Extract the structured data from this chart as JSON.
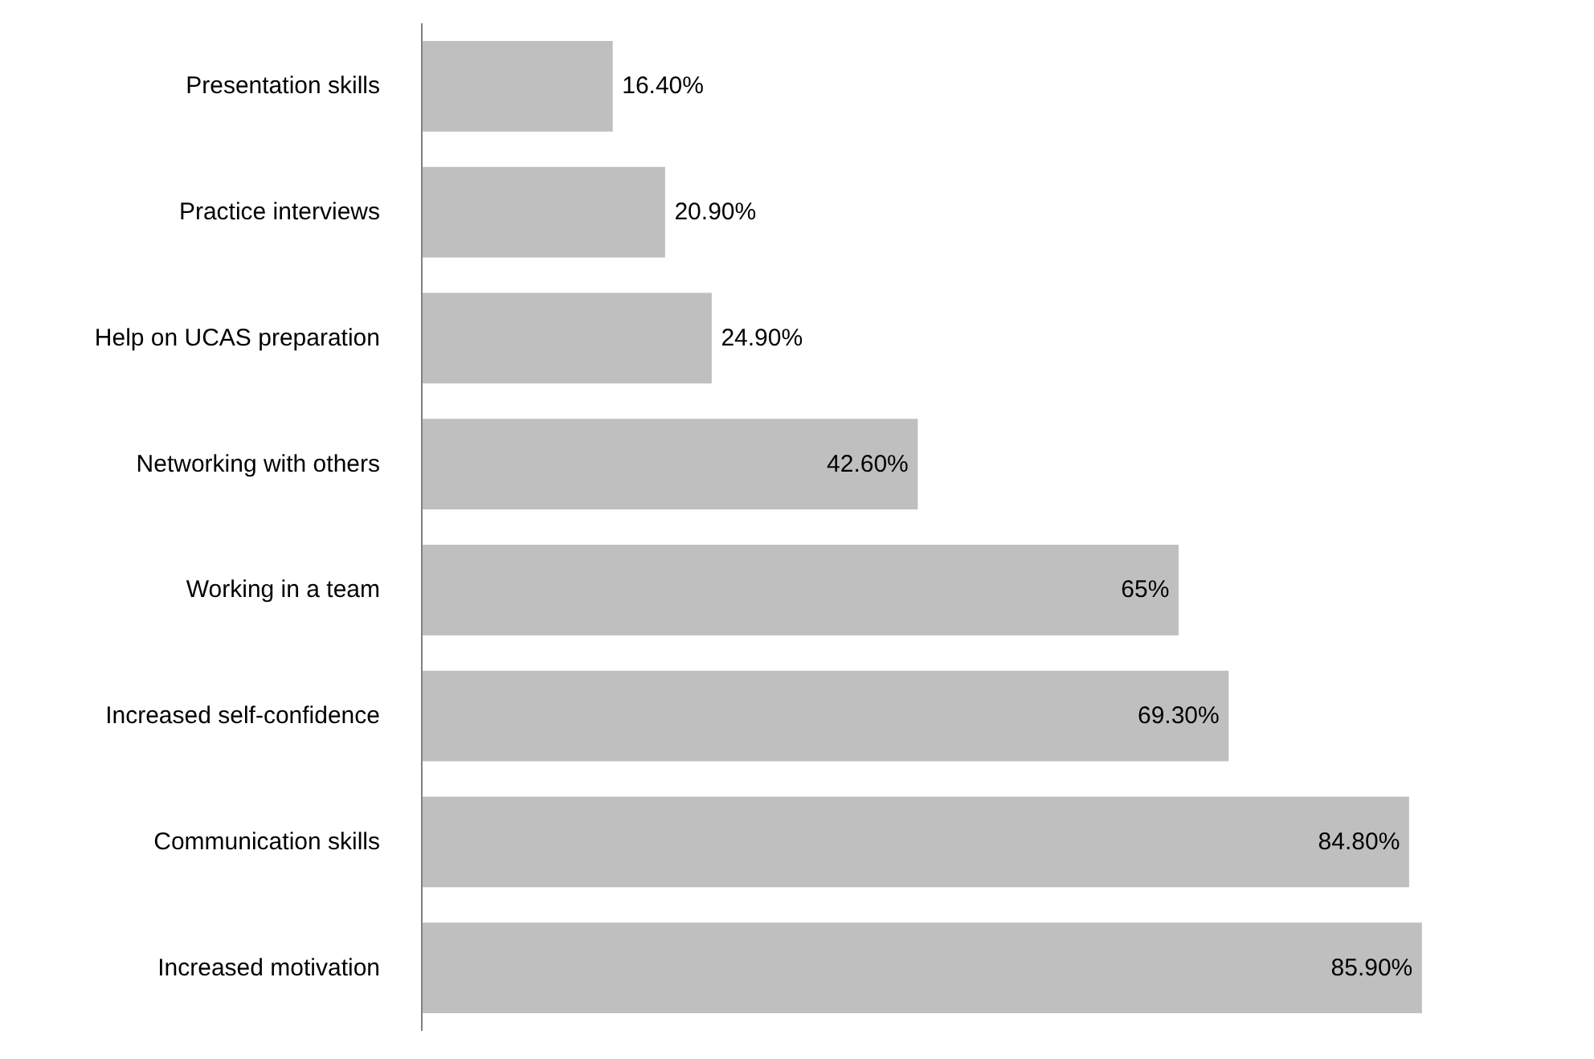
{
  "chart_data": {
    "type": "bar",
    "orientation": "horizontal",
    "categories": [
      "Presentation skills",
      "Practice interviews",
      "Help on UCAS preparation",
      "Networking with others",
      "Working in a team",
      "Increased self-confidence",
      "Communication skills",
      "Increased motivation"
    ],
    "values": [
      16.4,
      20.9,
      24.9,
      42.6,
      65,
      69.3,
      84.8,
      85.9
    ],
    "value_labels": [
      "16.40%",
      "20.90%",
      "24.90%",
      "42.60%",
      "65%",
      "69.30%",
      "84.80%",
      "85.90%"
    ],
    "color": "#bfbfbf",
    "tick_labels": "y",
    "grid": false
  }
}
